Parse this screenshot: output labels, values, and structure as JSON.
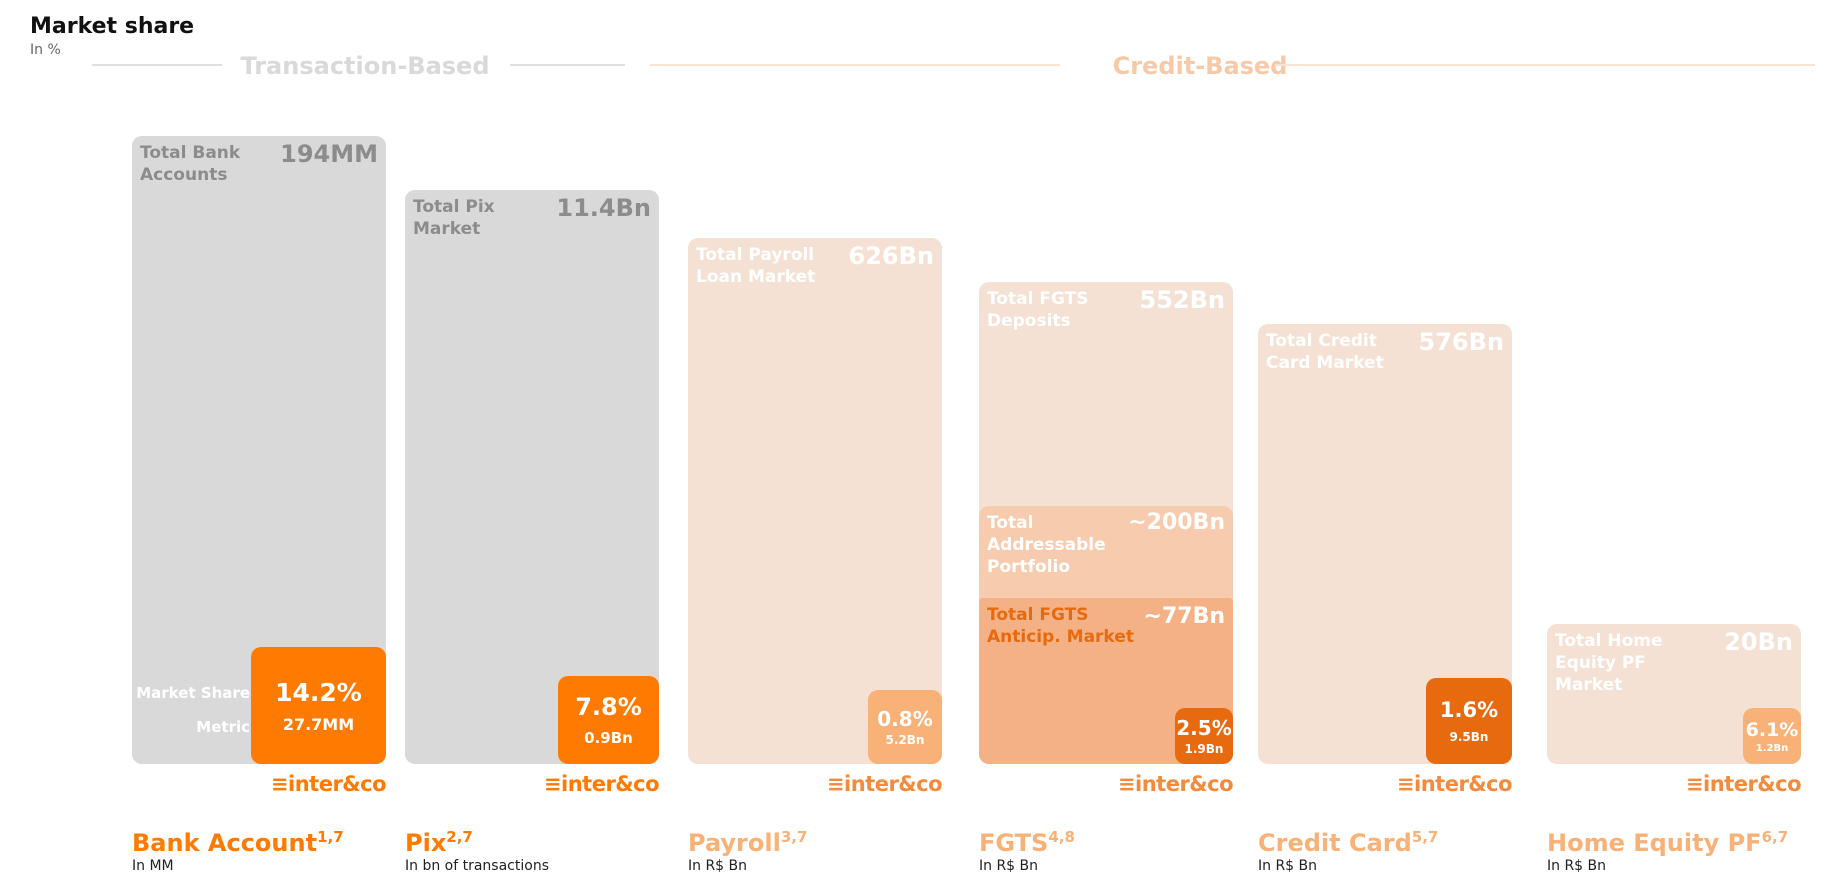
{
  "header": {
    "title": "Market share",
    "subtitle": "In %"
  },
  "sections": [
    {
      "label": "Transaction-Based",
      "color": "#d9d9d9"
    },
    {
      "label": "Credit-Based",
      "color": "#f8c9a6"
    }
  ],
  "side_labels": {
    "market_share": "Market Share",
    "metric": "Metric"
  },
  "logo_text": "inter&co",
  "chart_data": {
    "type": "bar",
    "title": "Market share",
    "subtitle": "In %",
    "categories": [
      "Bank Account",
      "Pix",
      "Payroll",
      "FGTS",
      "Credit Card",
      "Home Equity PF"
    ],
    "footnotes": [
      "1,7",
      "2,7",
      "3,7",
      "4,8",
      "5,7",
      "6,7"
    ],
    "units": [
      "In MM",
      "In bn of transactions",
      "In R$ Bn",
      "In R$ Bn",
      "In R$ Bn",
      "In R$ Bn"
    ],
    "market_totals": [
      {
        "label": "Total Bank Accounts",
        "value_text": "194MM",
        "value": 194
      },
      {
        "label": "Total Pix Market",
        "value_text": "11.4Bn",
        "value": 11.4
      },
      {
        "label": "Total Payroll Loan Market",
        "value_text": "626Bn",
        "value": 626
      },
      {
        "label": "Total FGTS Deposits",
        "value_text": "552Bn",
        "value": 552
      },
      {
        "label": "Total Credit Card Market",
        "value_text": "576Bn",
        "value": 576
      },
      {
        "label": "Total Home Equity PF Market",
        "value_text": "20Bn",
        "value": 20
      }
    ],
    "fgts_sub_markets": [
      {
        "label": "Total Addressable Portfolio",
        "value_text": "~200Bn",
        "value": 200
      },
      {
        "label": "Total FGTS Anticip. Market",
        "value_text": "~77Bn",
        "value": 77
      }
    ],
    "inter_share": [
      {
        "pct_text": "14.2%",
        "pct": 14.2,
        "metric_text": "27.7MM",
        "metric": 27.7
      },
      {
        "pct_text": "7.8%",
        "pct": 7.8,
        "metric_text": "0.9Bn",
        "metric": 0.9
      },
      {
        "pct_text": "0.8%",
        "pct": 0.8,
        "metric_text": "5.2Bn",
        "metric": 5.2
      },
      {
        "pct_text": "2.5%",
        "pct": 2.5,
        "metric_text": "1.9Bn",
        "metric": 1.9
      },
      {
        "pct_text": "1.6%",
        "pct": 1.6,
        "metric_text": "9.5Bn",
        "metric": 9.5
      },
      {
        "pct_text": "6.1%",
        "pct": 6.1,
        "metric_text": "1.2Bn",
        "metric": 1.2
      }
    ],
    "colors": {
      "orange": "#ff7a00",
      "dark_orange": "#e86a0e",
      "light_orange": "#f8b277",
      "gray_bg": "#d9d9d9",
      "peach_bg": "#f5e1d4",
      "peach_mid": "#f7cbae",
      "peach_dark": "#f4b185"
    }
  }
}
